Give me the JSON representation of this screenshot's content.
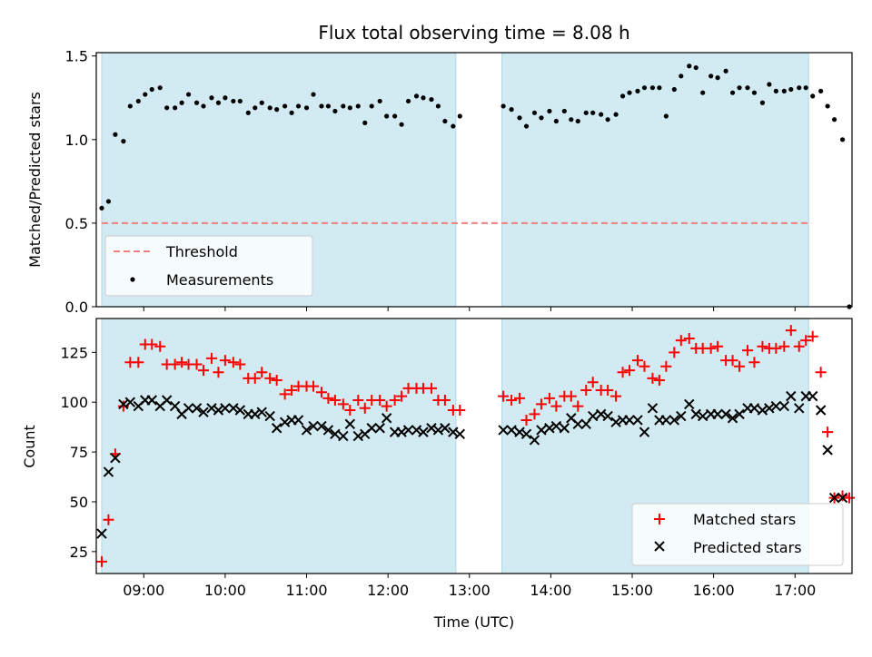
{
  "title": "Flux total observing time = 8.08 h",
  "colors": {
    "shade": "#add8e6",
    "threshold": "#f08080",
    "measurement": "#000000",
    "matched": "#ff0000",
    "predicted": "#000000"
  },
  "chart_data": [
    {
      "type": "scatter",
      "panel": "top",
      "ylabel": "Matched/Predicted stars",
      "xlim": [
        "08:25",
        "17:42"
      ],
      "ylim": [
        0,
        1.52
      ],
      "yticks": [
        {
          "v": 0,
          "label": "0.0"
        },
        {
          "v": 0.5,
          "label": "0.5"
        },
        {
          "v": 1.0,
          "label": "1.0"
        },
        {
          "v": 1.5,
          "label": "1.5"
        }
      ],
      "shaded_intervals": [
        [
          "08:29",
          "12:50"
        ],
        [
          "13:24",
          "17:10"
        ]
      ],
      "threshold": {
        "name": "Threshold",
        "value": 0.5,
        "x_range": [
          "08:29",
          "17:12"
        ]
      },
      "legend": {
        "placement": "lower left",
        "entries": [
          "Threshold",
          "Measurements"
        ]
      },
      "series": [
        {
          "name": "Measurements",
          "marker": "dot",
          "points": [
            [
              "08:29",
              0.59
            ],
            [
              "08:34",
              0.63
            ],
            [
              "08:39",
              1.03
            ],
            [
              "08:45",
              0.99
            ],
            [
              "08:50",
              1.2
            ],
            [
              "08:56",
              1.23
            ],
            [
              "09:01",
              1.27
            ],
            [
              "09:06",
              1.3
            ],
            [
              "09:12",
              1.31
            ],
            [
              "09:17",
              1.19
            ],
            [
              "09:23",
              1.19
            ],
            [
              "09:28",
              1.22
            ],
            [
              "09:33",
              1.27
            ],
            [
              "09:39",
              1.22
            ],
            [
              "09:44",
              1.2
            ],
            [
              "09:50",
              1.25
            ],
            [
              "09:55",
              1.22
            ],
            [
              "10:00",
              1.25
            ],
            [
              "10:06",
              1.23
            ],
            [
              "10:11",
              1.23
            ],
            [
              "10:17",
              1.16
            ],
            [
              "10:22",
              1.19
            ],
            [
              "10:27",
              1.22
            ],
            [
              "10:33",
              1.19
            ],
            [
              "10:38",
              1.18
            ],
            [
              "10:44",
              1.2
            ],
            [
              "10:49",
              1.16
            ],
            [
              "10:54",
              1.2
            ],
            [
              "11:00",
              1.19
            ],
            [
              "11:05",
              1.27
            ],
            [
              "11:11",
              1.2
            ],
            [
              "11:16",
              1.2
            ],
            [
              "11:21",
              1.17
            ],
            [
              "11:27",
              1.2
            ],
            [
              "11:32",
              1.19
            ],
            [
              "11:38",
              1.2
            ],
            [
              "11:43",
              1.1
            ],
            [
              "11:48",
              1.2
            ],
            [
              "11:54",
              1.23
            ],
            [
              "11:59",
              1.14
            ],
            [
              "12:05",
              1.14
            ],
            [
              "12:10",
              1.09
            ],
            [
              "12:15",
              1.23
            ],
            [
              "12:21",
              1.26
            ],
            [
              "12:26",
              1.25
            ],
            [
              "12:32",
              1.24
            ],
            [
              "12:37",
              1.2
            ],
            [
              "12:42",
              1.11
            ],
            [
              "12:48",
              1.08
            ],
            [
              "12:53",
              1.14
            ],
            [
              "13:25",
              1.2
            ],
            [
              "13:31",
              1.18
            ],
            [
              "13:37",
              1.13
            ],
            [
              "13:42",
              1.08
            ],
            [
              "13:48",
              1.16
            ],
            [
              "13:53",
              1.13
            ],
            [
              "13:59",
              1.17
            ],
            [
              "14:04",
              1.11
            ],
            [
              "14:10",
              1.17
            ],
            [
              "14:15",
              1.12
            ],
            [
              "14:20",
              1.11
            ],
            [
              "14:26",
              1.16
            ],
            [
              "14:31",
              1.16
            ],
            [
              "14:37",
              1.15
            ],
            [
              "14:42",
              1.12
            ],
            [
              "14:48",
              1.15
            ],
            [
              "14:53",
              1.26
            ],
            [
              "14:58",
              1.28
            ],
            [
              "15:04",
              1.29
            ],
            [
              "15:09",
              1.31
            ],
            [
              "15:15",
              1.31
            ],
            [
              "15:20",
              1.31
            ],
            [
              "15:25",
              1.14
            ],
            [
              "15:31",
              1.3
            ],
            [
              "15:36",
              1.38
            ],
            [
              "15:42",
              1.44
            ],
            [
              "15:47",
              1.43
            ],
            [
              "15:52",
              1.28
            ],
            [
              "15:58",
              1.38
            ],
            [
              "16:03",
              1.37
            ],
            [
              "16:09",
              1.41
            ],
            [
              "16:14",
              1.28
            ],
            [
              "16:19",
              1.31
            ],
            [
              "16:25",
              1.31
            ],
            [
              "16:30",
              1.28
            ],
            [
              "16:36",
              1.22
            ],
            [
              "16:41",
              1.33
            ],
            [
              "16:46",
              1.29
            ],
            [
              "16:52",
              1.29
            ],
            [
              "16:57",
              1.3
            ],
            [
              "17:03",
              1.31
            ],
            [
              "17:08",
              1.31
            ],
            [
              "17:13",
              1.26
            ],
            [
              "17:19",
              1.29
            ],
            [
              "17:24",
              1.2
            ],
            [
              "17:29",
              1.12
            ],
            [
              "17:35",
              1.0
            ],
            [
              "17:40",
              0.0
            ]
          ]
        }
      ]
    },
    {
      "type": "scatter",
      "panel": "bottom",
      "xlabel": "Time (UTC)",
      "ylabel": "Count",
      "xlim": [
        "08:25",
        "17:42"
      ],
      "ylim": [
        14,
        142
      ],
      "xticks": [
        "09:00",
        "10:00",
        "11:00",
        "12:00",
        "13:00",
        "14:00",
        "15:00",
        "16:00",
        "17:00"
      ],
      "yticks": [
        25,
        50,
        75,
        100,
        125
      ],
      "shaded_intervals": [
        [
          "08:29",
          "12:50"
        ],
        [
          "13:24",
          "17:10"
        ]
      ],
      "legend": {
        "placement": "lower right",
        "entries": [
          "Matched stars",
          "Predicted stars"
        ]
      },
      "x": [
        "08:29",
        "08:34",
        "08:39",
        "08:45",
        "08:50",
        "08:56",
        "09:01",
        "09:06",
        "09:12",
        "09:17",
        "09:23",
        "09:28",
        "09:33",
        "09:39",
        "09:44",
        "09:50",
        "09:55",
        "10:00",
        "10:06",
        "10:11",
        "10:17",
        "10:22",
        "10:27",
        "10:33",
        "10:38",
        "10:44",
        "10:49",
        "10:54",
        "11:00",
        "11:05",
        "11:11",
        "11:16",
        "11:21",
        "11:27",
        "11:32",
        "11:38",
        "11:43",
        "11:48",
        "11:54",
        "11:59",
        "12:05",
        "12:10",
        "12:15",
        "12:21",
        "12:26",
        "12:32",
        "12:37",
        "12:42",
        "12:48",
        "12:53",
        "13:25",
        "13:31",
        "13:37",
        "13:42",
        "13:48",
        "13:53",
        "13:59",
        "14:04",
        "14:10",
        "14:15",
        "14:20",
        "14:26",
        "14:31",
        "14:37",
        "14:42",
        "14:48",
        "14:53",
        "14:58",
        "15:04",
        "15:09",
        "15:15",
        "15:20",
        "15:25",
        "15:31",
        "15:36",
        "15:42",
        "15:47",
        "15:52",
        "15:58",
        "16:03",
        "16:09",
        "16:14",
        "16:19",
        "16:25",
        "16:30",
        "16:36",
        "16:41",
        "16:46",
        "16:52",
        "16:57",
        "17:03",
        "17:08",
        "17:13",
        "17:19",
        "17:24",
        "17:29",
        "17:35",
        "17:40"
      ],
      "series": [
        {
          "name": "Matched stars",
          "marker": "plus",
          "values": [
            20,
            41,
            74,
            98,
            120,
            120,
            129,
            129,
            128,
            119,
            119,
            120,
            119,
            119,
            116,
            122,
            115,
            121,
            120,
            119,
            112,
            112,
            115,
            112,
            111,
            104,
            106,
            108,
            108,
            108,
            105,
            102,
            101,
            99,
            96,
            101,
            97,
            101,
            101,
            98,
            101,
            103,
            107,
            107,
            107,
            107,
            101,
            101,
            96,
            96,
            103,
            101,
            102,
            91,
            94,
            99,
            102,
            98,
            103,
            103,
            98,
            106,
            110,
            106,
            106,
            103,
            115,
            116,
            121,
            118,
            112,
            111,
            118,
            125,
            131,
            132,
            127,
            127,
            127,
            128,
            121,
            121,
            118,
            126,
            120,
            128,
            127,
            127,
            128,
            136,
            128,
            131,
            133,
            115,
            85,
            52,
            53,
            52
          ]
        },
        {
          "name": "Predicted stars",
          "marker": "x",
          "values": [
            34,
            65,
            72,
            99,
            100,
            98,
            101,
            101,
            98,
            101,
            98,
            94,
            97,
            97,
            95,
            97,
            96,
            97,
            97,
            96,
            94,
            94,
            95,
            93,
            87,
            90,
            91,
            91,
            86,
            88,
            88,
            86,
            84,
            83,
            89,
            83,
            84,
            87,
            87,
            92,
            85,
            85,
            86,
            86,
            85,
            87,
            86,
            87,
            85,
            84,
            86,
            86,
            85,
            84,
            81,
            86,
            87,
            88,
            87,
            92,
            89,
            89,
            93,
            94,
            93,
            90,
            91,
            91,
            91,
            85,
            97,
            91,
            91,
            91,
            93,
            99,
            94,
            93,
            94,
            94,
            94,
            92,
            94,
            97,
            97,
            96,
            97,
            98,
            98,
            103,
            97,
            103,
            103,
            96,
            76,
            52,
            52,
            null
          ]
        }
      ]
    }
  ]
}
